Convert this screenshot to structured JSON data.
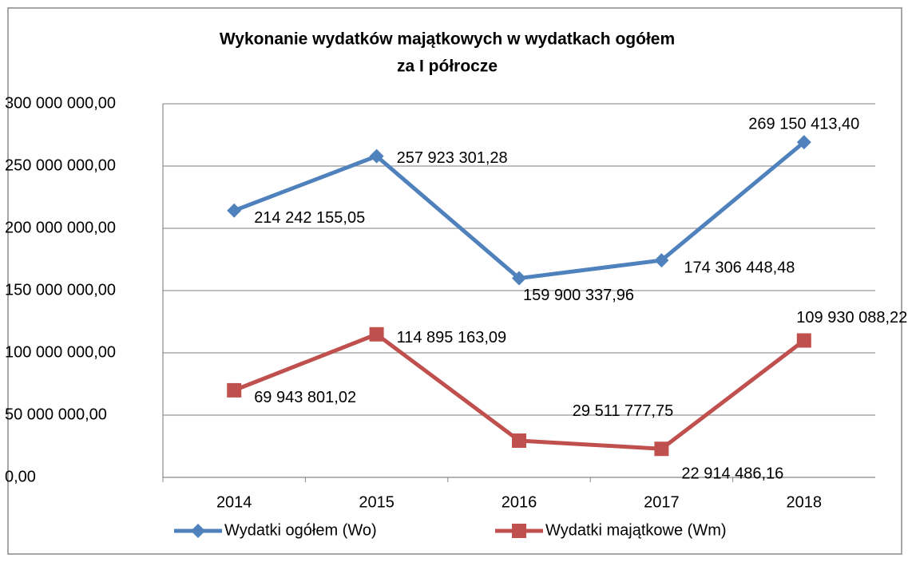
{
  "chart_data": {
    "type": "line",
    "title": "Wykonanie wydatków majątkowych w wydatkach ogółem",
    "subtitle": "za I półrocze",
    "categories": [
      "2014",
      "2015",
      "2016",
      "2017",
      "2018"
    ],
    "series": [
      {
        "name": "Wydatki ogółem (Wo)",
        "color": "#4f81bd",
        "marker": "diamond",
        "values": [
          214242155.05,
          257923301.28,
          159900337.96,
          174306448.48,
          269150413.4
        ],
        "value_labels": [
          "214 242 155,05",
          "257 923 301,28",
          "159 900 337,96",
          "174 306 448,48",
          "269 150 413,40"
        ]
      },
      {
        "name": "Wydatki majątkowe (Wm)",
        "color": "#c0504d",
        "marker": "square",
        "values": [
          69943801.02,
          114895163.09,
          29511777.75,
          22914486.16,
          109930088.22
        ],
        "value_labels": [
          "69 943 801,02",
          "114 895 163,09",
          "29 511 777,75",
          "22 914 486,16",
          "109 930 088,22"
        ]
      }
    ],
    "ylim": [
      0,
      300000000
    ],
    "yticks": [
      {
        "value": 0,
        "label": "0,00"
      },
      {
        "value": 50000000,
        "label": "50 000 000,00"
      },
      {
        "value": 100000000,
        "label": "100 000 000,00"
      },
      {
        "value": 150000000,
        "label": "150 000 000,00"
      },
      {
        "value": 200000000,
        "label": "200 000 000,00"
      },
      {
        "value": 250000000,
        "label": "250 000 000,00"
      },
      {
        "value": 300000000,
        "label": "300 000 000,00"
      }
    ],
    "grid": true,
    "legend": "bottom"
  }
}
